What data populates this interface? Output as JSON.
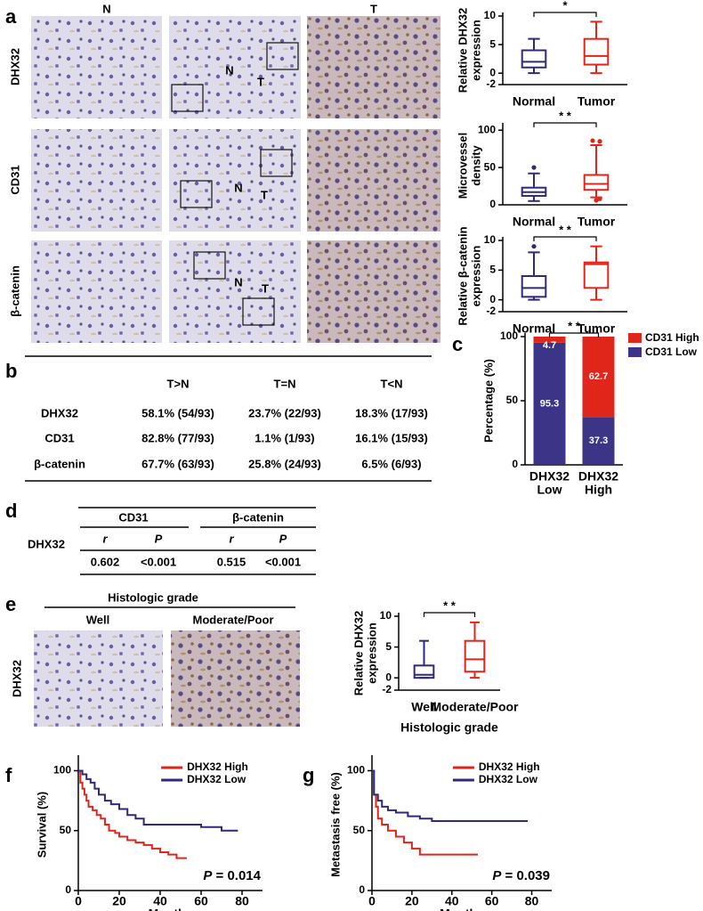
{
  "panel_labels": [
    "a",
    "b",
    "c",
    "d",
    "e",
    "f",
    "g"
  ],
  "panel_a": {
    "column_labels": [
      "N",
      "T"
    ],
    "row_labels": [
      "DHX32",
      "CD31",
      "β-catenin"
    ],
    "region_labels": [
      "N",
      "T"
    ]
  },
  "table_b": {
    "columns": [
      "T>N",
      "T=N",
      "T<N"
    ],
    "rows": [
      {
        "label": "DHX32",
        "cells": [
          "58.1% (54/93)",
          "23.7% (22/93)",
          "18.3% (17/93)"
        ]
      },
      {
        "label": "CD31",
        "cells": [
          "82.8% (77/93)",
          "1.1% (1/93)",
          "16.1% (15/93)"
        ]
      },
      {
        "label": "β-catenin",
        "cells": [
          "67.7% (63/93)",
          "25.8% (24/93)",
          "6.5% (6/93)"
        ]
      }
    ]
  },
  "table_d": {
    "row_label": "DHX32",
    "groups": [
      "CD31",
      "β-catenin"
    ],
    "subheaders": [
      "r",
      "P"
    ],
    "values": [
      "0.602",
      "<0.001",
      "0.515",
      "<0.001"
    ]
  },
  "panel_e": {
    "header": "Histologic grade",
    "columns": [
      "Well",
      "Moderate/Poor"
    ],
    "row_label": "DHX32"
  },
  "chart_data": [
    {
      "type": "box",
      "ylabel": [
        "Relative DHX32",
        "expression"
      ],
      "categories": [
        "Normal",
        "Tumor"
      ],
      "colors": [
        "#2e2a78",
        "#e0251b"
      ],
      "boxes": [
        {
          "min": 0,
          "q1": 1,
          "median": 2,
          "q3": 4,
          "max": 6,
          "outliers": []
        },
        {
          "min": 0,
          "q1": 1.5,
          "median": 3,
          "q3": 6,
          "max": 9,
          "outliers": []
        }
      ],
      "ylim": [
        -2,
        10
      ],
      "yticks": [
        -2,
        0,
        5,
        10
      ],
      "significance": "*"
    },
    {
      "type": "box",
      "ylabel": [
        "Microvessel",
        "density"
      ],
      "categories": [
        "Normal",
        "Tumor"
      ],
      "colors": [
        "#2e2a78",
        "#e0251b"
      ],
      "boxes": [
        {
          "min": 5,
          "q1": 12,
          "median": 17,
          "q3": 23,
          "max": 42,
          "outliers": [
            50
          ]
        },
        {
          "min": 10,
          "q1": 20,
          "median": 28,
          "q3": 40,
          "max": 80,
          "outliers": [
            6,
            8,
            86,
            85
          ]
        }
      ],
      "ylim": [
        0,
        105
      ],
      "yticks": [
        0,
        50,
        100
      ],
      "significance": "* *"
    },
    {
      "type": "box",
      "ylabel": [
        "Relative β-catenin",
        "expression"
      ],
      "categories": [
        "Normal",
        "Tumor"
      ],
      "colors": [
        "#2e2a78",
        "#e0251b"
      ],
      "boxes": [
        {
          "min": 0,
          "q1": 0.5,
          "median": 2,
          "q3": 4,
          "max": 8,
          "outliers": [
            9
          ]
        },
        {
          "min": 0,
          "q1": 2,
          "median": 6,
          "q3": 6.3,
          "max": 9,
          "outliers": []
        }
      ],
      "ylim": [
        -2,
        10
      ],
      "yticks": [
        -2,
        0,
        5,
        10
      ],
      "significance": "* *"
    },
    {
      "type": "stacked_bar",
      "ylabel": "Percentage (%)",
      "categories": [
        [
          "DHX32",
          "Low"
        ],
        [
          "DHX32",
          "High"
        ]
      ],
      "series": [
        {
          "name": "CD31 Low",
          "color": "#3b3487",
          "values": [
            95.3,
            37.3
          ]
        },
        {
          "name": "CD31 High",
          "color": "#e0251b",
          "values": [
            4.7,
            62.7
          ]
        }
      ],
      "ylim": [
        0,
        100
      ],
      "yticks": [
        0,
        50,
        100
      ],
      "significance": "* *",
      "legend": "upper right"
    },
    {
      "type": "box",
      "ylabel": [
        "Relative DHX32",
        "expression"
      ],
      "xlabel": "Histologic grade",
      "categories": [
        "Well",
        "Moderate/Poor"
      ],
      "colors": [
        "#2e2a78",
        "#e0251b"
      ],
      "boxes": [
        {
          "min": 0,
          "q1": 0,
          "median": 0.5,
          "q3": 2,
          "max": 6,
          "outliers": []
        },
        {
          "min": 0,
          "q1": 1,
          "median": 3,
          "q3": 6,
          "max": 9,
          "outliers": []
        }
      ],
      "ylim": [
        -2,
        10
      ],
      "yticks": [
        -2,
        0,
        5,
        10
      ],
      "significance": "* *"
    },
    {
      "type": "km",
      "ylabel": "Survival (%)",
      "xlabel": "Months",
      "xlim": [
        0,
        90
      ],
      "xticks": [
        0,
        20,
        40,
        60,
        80
      ],
      "ylim": [
        0,
        110
      ],
      "yticks": [
        0,
        50,
        100
      ],
      "series": [
        {
          "name": "DHX32 High",
          "color": "#e0251b",
          "x": [
            0,
            1,
            2,
            3,
            4,
            5,
            7,
            9,
            11,
            13,
            15,
            18,
            20,
            24,
            28,
            32,
            36,
            40,
            44,
            48,
            53
          ],
          "values": [
            100,
            90,
            85,
            80,
            75,
            70,
            67,
            63,
            60,
            55,
            50,
            48,
            45,
            42,
            40,
            38,
            35,
            32,
            30,
            27,
            27
          ]
        },
        {
          "name": "DHX32 Low",
          "color": "#2e2a78",
          "x": [
            0,
            2,
            4,
            6,
            8,
            10,
            13,
            16,
            20,
            24,
            28,
            32,
            40,
            50,
            60,
            70,
            78
          ],
          "values": [
            100,
            97,
            93,
            90,
            85,
            80,
            75,
            72,
            68,
            63,
            60,
            55,
            55,
            55,
            53,
            50,
            50
          ]
        }
      ],
      "annotation_symbol": "P",
      "annotation_text": "= 0.014",
      "legend": "upper right"
    },
    {
      "type": "km",
      "ylabel": "Metastasis free (%)",
      "xlabel": "Months",
      "xlim": [
        0,
        90
      ],
      "xticks": [
        0,
        20,
        40,
        60,
        80
      ],
      "ylim": [
        0,
        110
      ],
      "yticks": [
        0,
        50,
        100
      ],
      "series": [
        {
          "name": "DHX32 High",
          "color": "#e0251b",
          "x": [
            0,
            1,
            2,
            3,
            5,
            8,
            12,
            16,
            20,
            24,
            53
          ],
          "values": [
            100,
            80,
            70,
            60,
            55,
            50,
            45,
            40,
            35,
            30,
            30
          ]
        },
        {
          "name": "DHX32 Low",
          "color": "#2e2a78",
          "x": [
            0,
            1,
            3,
            5,
            8,
            12,
            18,
            24,
            30,
            40,
            78
          ],
          "values": [
            100,
            80,
            75,
            70,
            67,
            65,
            62,
            60,
            58,
            58,
            58
          ]
        }
      ],
      "annotation_symbol": "P",
      "annotation_text": "= 0.039",
      "legend": "upper right"
    }
  ]
}
